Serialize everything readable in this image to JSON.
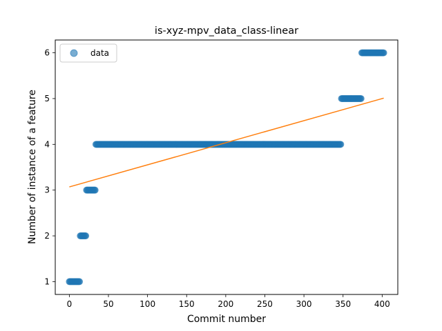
{
  "chart_data": {
    "type": "scatter",
    "title": "is-xyz-mpv_data_class-linear",
    "xlabel": "Commit number",
    "ylabel": "Number of instance of a feature",
    "xlim": [
      -18,
      420
    ],
    "ylim": [
      0.72,
      6.28
    ],
    "xticks": [
      0,
      50,
      100,
      150,
      200,
      250,
      300,
      350,
      400
    ],
    "yticks": [
      1,
      2,
      3,
      4,
      5,
      6
    ],
    "grid": false,
    "legend_position": "top-left",
    "series": [
      {
        "name": "data",
        "kind": "scatter",
        "color": "#1f77b4",
        "segments": [
          {
            "x_start": 0,
            "x_end": 13,
            "y": 1
          },
          {
            "x_start": 14,
            "x_end": 21,
            "y": 2
          },
          {
            "x_start": 22,
            "x_end": 33,
            "y": 3
          },
          {
            "x_start": 34,
            "x_end": 347,
            "y": 4
          },
          {
            "x_start": 348,
            "x_end": 373,
            "y": 5
          },
          {
            "x_start": 374,
            "x_end": 402,
            "y": 6
          }
        ]
      },
      {
        "name": "",
        "kind": "line",
        "color": "#ff7f0e",
        "x": [
          0,
          402
        ],
        "y": [
          3.07,
          5.01
        ]
      }
    ]
  }
}
